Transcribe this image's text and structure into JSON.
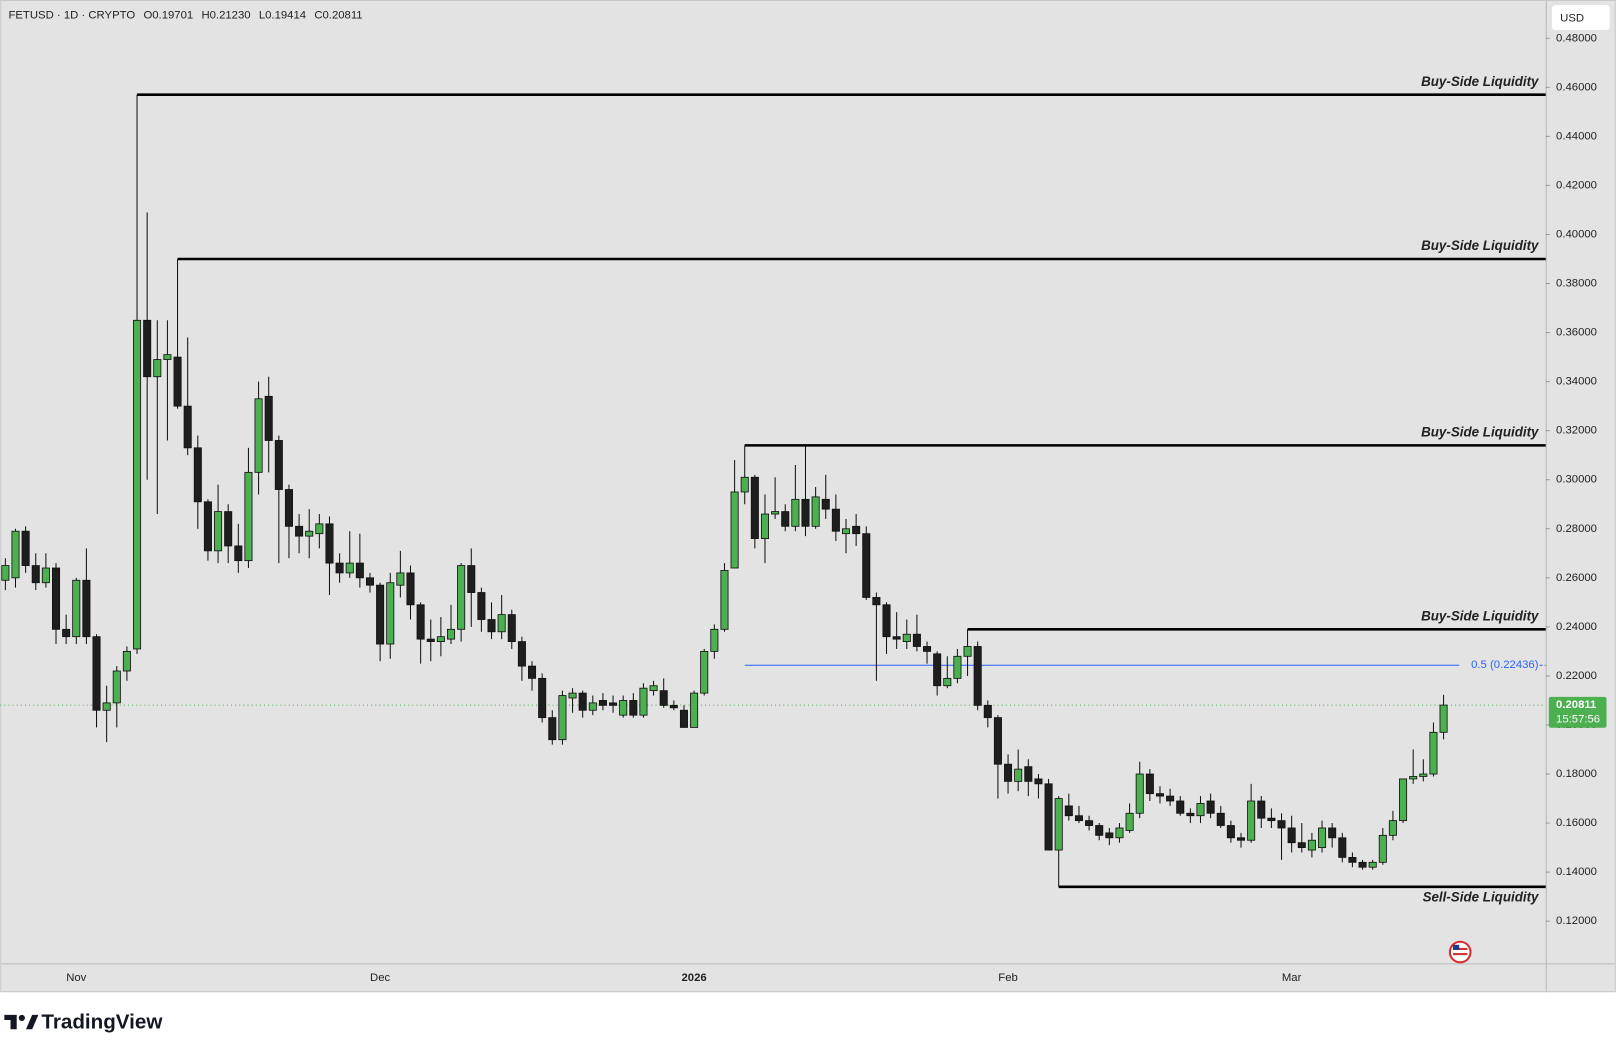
{
  "chart_data": {
    "type": "candlestick",
    "title": "FETUSD · 1D · CRYPTO",
    "ohlc_header": [
      "O0.19701",
      "H0.21230",
      "L0.19414",
      "C0.20811"
    ],
    "currency": "USD",
    "up_color": "#4caf50",
    "down_color": "#1e1e1e",
    "wick_color": "#111111",
    "grid": false,
    "ylim": [
      0.1028,
      0.4956
    ],
    "yticks": [
      {
        "value": 0.12,
        "label": "0.12000"
      },
      {
        "value": 0.14,
        "label": "0.14000"
      },
      {
        "value": 0.16,
        "label": "0.16000"
      },
      {
        "value": 0.18,
        "label": "0.18000"
      },
      {
        "value": 0.2,
        "label": "0.20000"
      },
      {
        "value": 0.22,
        "label": "0.22000"
      },
      {
        "value": 0.24,
        "label": "0.24000"
      },
      {
        "value": 0.26,
        "label": "0.26000"
      },
      {
        "value": 0.28,
        "label": "0.28000"
      },
      {
        "value": 0.3,
        "label": "0.30000"
      },
      {
        "value": 0.32,
        "label": "0.32000"
      },
      {
        "value": 0.34,
        "label": "0.34000"
      },
      {
        "value": 0.36,
        "label": "0.36000"
      },
      {
        "value": 0.38,
        "label": "0.38000"
      },
      {
        "value": 0.4,
        "label": "0.40000"
      },
      {
        "value": 0.42,
        "label": "0.42000"
      },
      {
        "value": 0.44,
        "label": "0.44000"
      },
      {
        "value": 0.46,
        "label": "0.46000"
      },
      {
        "value": 0.48,
        "label": "0.48000"
      }
    ],
    "categories": [
      null,
      null,
      null,
      null,
      null,
      null,
      null,
      "Nov",
      null,
      null,
      null,
      null,
      null,
      null,
      null,
      null,
      null,
      null,
      null,
      null,
      null,
      null,
      null,
      null,
      null,
      null,
      null,
      null,
      null,
      null,
      null,
      null,
      null,
      null,
      null,
      null,
      null,
      "Dec",
      null,
      null,
      null,
      null,
      null,
      null,
      null,
      null,
      null,
      null,
      null,
      null,
      null,
      null,
      null,
      null,
      null,
      null,
      null,
      null,
      null,
      null,
      null,
      null,
      null,
      null,
      null,
      null,
      null,
      null,
      "2026",
      null,
      null,
      null,
      null,
      null,
      null,
      null,
      null,
      null,
      null,
      null,
      null,
      null,
      null,
      null,
      null,
      null,
      null,
      null,
      null,
      null,
      null,
      null,
      null,
      null,
      null,
      null,
      null,
      null,
      null,
      "Feb",
      null,
      null,
      null,
      null,
      null,
      null,
      null,
      null,
      null,
      null,
      null,
      null,
      null,
      null,
      null,
      null,
      null,
      null,
      null,
      null,
      null,
      null,
      null,
      null,
      null,
      null,
      null,
      "Mar",
      null,
      null,
      null,
      null,
      null,
      null,
      null,
      null,
      null,
      null,
      null,
      null,
      null,
      null,
      null
    ],
    "ohlc": [
      [
        0.259,
        0.268,
        0.255,
        0.265
      ],
      [
        0.26,
        0.28,
        0.256,
        0.279
      ],
      [
        0.279,
        0.281,
        0.262,
        0.265
      ],
      [
        0.265,
        0.27,
        0.255,
        0.258
      ],
      [
        0.258,
        0.27,
        0.256,
        0.264
      ],
      [
        0.264,
        0.266,
        0.233,
        0.239
      ],
      [
        0.239,
        0.245,
        0.233,
        0.236
      ],
      [
        0.236,
        0.26,
        0.233,
        0.259
      ],
      [
        0.259,
        0.272,
        0.233,
        0.236
      ],
      [
        0.236,
        0.237,
        0.199,
        0.206
      ],
      [
        0.206,
        0.216,
        0.193,
        0.209
      ],
      [
        0.209,
        0.224,
        0.199,
        0.222
      ],
      [
        0.222,
        0.232,
        0.218,
        0.23
      ],
      [
        0.231,
        0.457,
        0.229,
        0.365
      ],
      [
        0.365,
        0.409,
        0.3,
        0.342
      ],
      [
        0.342,
        0.365,
        0.286,
        0.349
      ],
      [
        0.349,
        0.365,
        0.316,
        0.351
      ],
      [
        0.35,
        0.39,
        0.329,
        0.33
      ],
      [
        0.33,
        0.358,
        0.31,
        0.313
      ],
      [
        0.313,
        0.318,
        0.28,
        0.291
      ],
      [
        0.291,
        0.292,
        0.267,
        0.271
      ],
      [
        0.271,
        0.298,
        0.266,
        0.287
      ],
      [
        0.287,
        0.29,
        0.266,
        0.273
      ],
      [
        0.273,
        0.282,
        0.262,
        0.267
      ],
      [
        0.267,
        0.313,
        0.264,
        0.303
      ],
      [
        0.303,
        0.34,
        0.294,
        0.333
      ],
      [
        0.334,
        0.342,
        0.303,
        0.316
      ],
      [
        0.316,
        0.318,
        0.266,
        0.296
      ],
      [
        0.296,
        0.298,
        0.268,
        0.281
      ],
      [
        0.281,
        0.286,
        0.27,
        0.277
      ],
      [
        0.277,
        0.288,
        0.268,
        0.279
      ],
      [
        0.278,
        0.286,
        0.272,
        0.282
      ],
      [
        0.282,
        0.285,
        0.253,
        0.266
      ],
      [
        0.266,
        0.27,
        0.258,
        0.262
      ],
      [
        0.262,
        0.279,
        0.26,
        0.266
      ],
      [
        0.266,
        0.278,
        0.256,
        0.26
      ],
      [
        0.26,
        0.262,
        0.254,
        0.257
      ],
      [
        0.257,
        0.258,
        0.226,
        0.233
      ],
      [
        0.233,
        0.262,
        0.227,
        0.258
      ],
      [
        0.257,
        0.271,
        0.252,
        0.262
      ],
      [
        0.262,
        0.265,
        0.243,
        0.249
      ],
      [
        0.249,
        0.25,
        0.225,
        0.235
      ],
      [
        0.235,
        0.243,
        0.226,
        0.234
      ],
      [
        0.234,
        0.244,
        0.228,
        0.236
      ],
      [
        0.235,
        0.249,
        0.233,
        0.239
      ],
      [
        0.239,
        0.266,
        0.234,
        0.265
      ],
      [
        0.265,
        0.272,
        0.24,
        0.254
      ],
      [
        0.254,
        0.256,
        0.238,
        0.243
      ],
      [
        0.243,
        0.25,
        0.235,
        0.238
      ],
      [
        0.238,
        0.253,
        0.235,
        0.245
      ],
      [
        0.245,
        0.247,
        0.231,
        0.234
      ],
      [
        0.234,
        0.236,
        0.218,
        0.224
      ],
      [
        0.224,
        0.226,
        0.214,
        0.219
      ],
      [
        0.219,
        0.221,
        0.201,
        0.203
      ],
      [
        0.203,
        0.206,
        0.192,
        0.194
      ],
      [
        0.194,
        0.214,
        0.192,
        0.212
      ],
      [
        0.211,
        0.215,
        0.205,
        0.213
      ],
      [
        0.213,
        0.214,
        0.203,
        0.206
      ],
      [
        0.206,
        0.212,
        0.204,
        0.209
      ],
      [
        0.21,
        0.213,
        0.206,
        0.208
      ],
      [
        0.209,
        0.212,
        0.205,
        0.208
      ],
      [
        0.204,
        0.212,
        0.203,
        0.21
      ],
      [
        0.21,
        0.213,
        0.203,
        0.204
      ],
      [
        0.204,
        0.217,
        0.203,
        0.215
      ],
      [
        0.214,
        0.218,
        0.212,
        0.216
      ],
      [
        0.214,
        0.219,
        0.207,
        0.208
      ],
      [
        0.208,
        0.21,
        0.206,
        0.207
      ],
      [
        0.206,
        0.208,
        0.199,
        0.199
      ],
      [
        0.199,
        0.214,
        0.199,
        0.213
      ],
      [
        0.213,
        0.231,
        0.212,
        0.23
      ],
      [
        0.23,
        0.241,
        0.227,
        0.239
      ],
      [
        0.239,
        0.266,
        0.238,
        0.263
      ],
      [
        0.264,
        0.308,
        0.264,
        0.295
      ],
      [
        0.295,
        0.314,
        0.29,
        0.301
      ],
      [
        0.301,
        0.302,
        0.272,
        0.276
      ],
      [
        0.276,
        0.294,
        0.266,
        0.286
      ],
      [
        0.286,
        0.301,
        0.284,
        0.287
      ],
      [
        0.287,
        0.29,
        0.279,
        0.281
      ],
      [
        0.281,
        0.306,
        0.279,
        0.292
      ],
      [
        0.292,
        0.314,
        0.277,
        0.281
      ],
      [
        0.281,
        0.297,
        0.28,
        0.293
      ],
      [
        0.292,
        0.302,
        0.284,
        0.288
      ],
      [
        0.288,
        0.294,
        0.275,
        0.279
      ],
      [
        0.278,
        0.284,
        0.27,
        0.28
      ],
      [
        0.281,
        0.286,
        0.273,
        0.278
      ],
      [
        0.278,
        0.281,
        0.251,
        0.252
      ],
      [
        0.252,
        0.254,
        0.218,
        0.249
      ],
      [
        0.249,
        0.25,
        0.229,
        0.236
      ],
      [
        0.236,
        0.246,
        0.231,
        0.235
      ],
      [
        0.234,
        0.243,
        0.231,
        0.237
      ],
      [
        0.237,
        0.245,
        0.23,
        0.232
      ],
      [
        0.232,
        0.234,
        0.225,
        0.23
      ],
      [
        0.229,
        0.23,
        0.212,
        0.216
      ],
      [
        0.216,
        0.228,
        0.215,
        0.219
      ],
      [
        0.219,
        0.231,
        0.217,
        0.228
      ],
      [
        0.228,
        0.239,
        0.22,
        0.232
      ],
      [
        0.232,
        0.234,
        0.206,
        0.208
      ],
      [
        0.208,
        0.21,
        0.199,
        0.203
      ],
      [
        0.203,
        0.204,
        0.17,
        0.184
      ],
      [
        0.184,
        0.188,
        0.172,
        0.177
      ],
      [
        0.177,
        0.19,
        0.173,
        0.182
      ],
      [
        0.183,
        0.186,
        0.171,
        0.177
      ],
      [
        0.178,
        0.18,
        0.17,
        0.176
      ],
      [
        0.176,
        0.178,
        0.149,
        0.149
      ],
      [
        0.149,
        0.171,
        0.134,
        0.17
      ],
      [
        0.167,
        0.172,
        0.161,
        0.163
      ],
      [
        0.163,
        0.167,
        0.16,
        0.161
      ],
      [
        0.161,
        0.163,
        0.157,
        0.159
      ],
      [
        0.159,
        0.16,
        0.153,
        0.155
      ],
      [
        0.156,
        0.158,
        0.151,
        0.154
      ],
      [
        0.154,
        0.16,
        0.152,
        0.158
      ],
      [
        0.157,
        0.168,
        0.156,
        0.164
      ],
      [
        0.164,
        0.185,
        0.162,
        0.18
      ],
      [
        0.18,
        0.182,
        0.169,
        0.172
      ],
      [
        0.172,
        0.175,
        0.168,
        0.171
      ],
      [
        0.171,
        0.174,
        0.167,
        0.169
      ],
      [
        0.169,
        0.171,
        0.163,
        0.164
      ],
      [
        0.164,
        0.166,
        0.16,
        0.163
      ],
      [
        0.163,
        0.171,
        0.16,
        0.168
      ],
      [
        0.169,
        0.172,
        0.162,
        0.164
      ],
      [
        0.164,
        0.167,
        0.158,
        0.159
      ],
      [
        0.159,
        0.161,
        0.152,
        0.154
      ],
      [
        0.154,
        0.156,
        0.15,
        0.153
      ],
      [
        0.153,
        0.176,
        0.152,
        0.169
      ],
      [
        0.169,
        0.171,
        0.158,
        0.162
      ],
      [
        0.162,
        0.166,
        0.158,
        0.161
      ],
      [
        0.161,
        0.164,
        0.145,
        0.158
      ],
      [
        0.158,
        0.163,
        0.148,
        0.152
      ],
      [
        0.152,
        0.16,
        0.148,
        0.15
      ],
      [
        0.149,
        0.156,
        0.146,
        0.153
      ],
      [
        0.15,
        0.161,
        0.148,
        0.158
      ],
      [
        0.158,
        0.16,
        0.15,
        0.154
      ],
      [
        0.154,
        0.156,
        0.144,
        0.146
      ],
      [
        0.146,
        0.148,
        0.142,
        0.144
      ],
      [
        0.144,
        0.145,
        0.141,
        0.142
      ],
      [
        0.142,
        0.145,
        0.141,
        0.144
      ],
      [
        0.144,
        0.158,
        0.143,
        0.155
      ],
      [
        0.155,
        0.165,
        0.153,
        0.161
      ],
      [
        0.161,
        0.178,
        0.16,
        0.178
      ],
      [
        0.178,
        0.19,
        0.176,
        0.179
      ],
      [
        0.179,
        0.186,
        0.177,
        0.18
      ],
      [
        0.18,
        0.201,
        0.179,
        0.197
      ],
      [
        0.19701,
        0.2123,
        0.19414,
        0.20811
      ]
    ],
    "levels": [
      {
        "label": "Buy-Side Liquidity",
        "value": 0.457
      },
      {
        "label": "Buy-Side Liquidity",
        "value": 0.39
      },
      {
        "label": "Buy-Side Liquidity",
        "value": 0.314
      },
      {
        "label": "Buy-Side Liquidity",
        "value": 0.239
      },
      {
        "label": "Sell-Side Liquidity",
        "value": 0.134
      }
    ],
    "fib": {
      "label": "0.5 (0.22436)",
      "value": 0.22436,
      "color": "#2962ff"
    },
    "last_price": {
      "value": 0.20811,
      "countdown": "15:57:56",
      "color": "#4caf50"
    }
  },
  "footer": {
    "brand": "TradingView"
  }
}
